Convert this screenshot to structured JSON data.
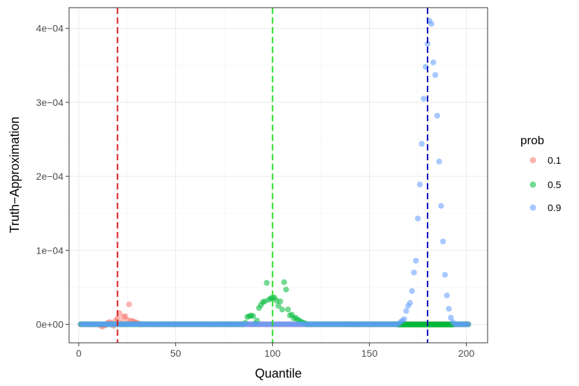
{
  "chart_data": {
    "type": "scatter",
    "xlabel": "Quantile",
    "ylabel": "Truth−Approximation",
    "xlim": [
      -5,
      211
    ],
    "ylim": [
      -2.5e-05,
      0.000428
    ],
    "x_ticks": [
      0,
      50,
      100,
      150,
      200
    ],
    "x_tick_labels": [
      "0",
      "50",
      "100",
      "150",
      "200"
    ],
    "y_ticks": [
      0,
      0.0001,
      0.0002,
      0.0003,
      0.0004
    ],
    "y_tick_labels": [
      "0e+00",
      "1e−04",
      "2e−04",
      "3e−04",
      "4e−04"
    ],
    "grid": true,
    "theme": "bw",
    "legend": {
      "title": "prob",
      "placement": "right",
      "entries": [
        "0.1",
        "0.5",
        "0.9"
      ]
    },
    "vlines": [
      {
        "x": 20,
        "color": "#d7191c",
        "style": "dashed"
      },
      {
        "x": 100,
        "color": "#22dd22",
        "style": "dashed"
      },
      {
        "x": 180,
        "color": "#0000bb",
        "style": "dashed"
      }
    ],
    "series": [
      {
        "name": "0.1",
        "color": "#F8766D",
        "points": [
          [
            11,
            -1e-06
          ],
          [
            12,
            -3e-06
          ],
          [
            13,
            -2e-06
          ],
          [
            14,
            -1e-06
          ],
          [
            15,
            2e-06
          ],
          [
            16,
            3e-06
          ],
          [
            17,
            1e-06
          ],
          [
            18,
            -2e-06
          ],
          [
            19,
            5e-06
          ],
          [
            20,
            8e-06
          ],
          [
            21,
            1.5e-05
          ],
          [
            22,
            3e-06
          ],
          [
            23,
            1e-05
          ],
          [
            24,
            1.1e-05
          ],
          [
            25,
            6e-06
          ],
          [
            26,
            2.7e-05
          ],
          [
            27,
            5e-06
          ],
          [
            28,
            4e-06
          ],
          [
            29,
            3e-06
          ],
          [
            30,
            2e-06
          ],
          [
            31,
            1e-06
          ]
        ],
        "baseline_range": [
          1,
          201
        ]
      },
      {
        "name": "0.5",
        "color": "#00BA38",
        "points": [
          [
            86,
            2e-06
          ],
          [
            87,
            1e-05
          ],
          [
            88,
            1.1e-05
          ],
          [
            89,
            1.2e-05
          ],
          [
            90,
            1.1e-05
          ],
          [
            91,
            1e-06
          ],
          [
            92,
            5e-06
          ],
          [
            93,
            2.2e-05
          ],
          [
            94,
            2.6e-05
          ],
          [
            95,
            3e-05
          ],
          [
            96,
            3.1e-05
          ],
          [
            97,
            5.6e-05
          ],
          [
            98,
            3.3e-05
          ],
          [
            99,
            3.5e-05
          ],
          [
            100,
            3.6e-05
          ],
          [
            101,
            3.6e-05
          ],
          [
            102,
            3.2e-05
          ],
          [
            103,
            2.5e-05
          ],
          [
            104,
            3.1e-05
          ],
          [
            105,
            2e-05
          ],
          [
            106,
            5.7e-05
          ],
          [
            107,
            4.7e-05
          ],
          [
            108,
            2e-05
          ],
          [
            109,
            1.2e-05
          ],
          [
            110,
            1.3e-05
          ],
          [
            111,
            8e-06
          ],
          [
            112,
            9e-06
          ],
          [
            113,
            6e-06
          ],
          [
            114,
            5e-06
          ],
          [
            115,
            3e-06
          ],
          [
            116,
            2e-06
          ],
          [
            117,
            1e-06
          ]
        ],
        "baseline_range": [
          1,
          201
        ],
        "band": {
          "x_range": [
            165,
            193
          ],
          "y": -5e-07
        }
      },
      {
        "name": "0.9",
        "color": "#619CFF",
        "points": [
          [
            166,
            3e-06
          ],
          [
            167,
            5e-06
          ],
          [
            168,
            7e-06
          ],
          [
            169,
            1.8e-05
          ],
          [
            170,
            2.5e-05
          ],
          [
            171,
            2.9e-05
          ],
          [
            172,
            4.5e-05
          ],
          [
            173,
            7e-05
          ],
          [
            174,
            8.6e-05
          ],
          [
            175,
            0.000143
          ],
          [
            176,
            0.000189
          ],
          [
            177,
            0.000244
          ],
          [
            178,
            0.000305
          ],
          [
            179,
            0.000348
          ],
          [
            180,
            0.000379
          ],
          [
            181,
            0.00041
          ],
          [
            182,
            0.000406
          ],
          [
            183,
            0.000354
          ],
          [
            184,
            0.000337
          ],
          [
            185,
            0.000282
          ],
          [
            186,
            0.00022
          ],
          [
            187,
            0.00016
          ],
          [
            188,
            0.000112
          ],
          [
            189,
            6.7e-05
          ],
          [
            190,
            3.9e-05
          ],
          [
            191,
            2.1e-05
          ],
          [
            192,
            9e-06
          ],
          [
            193,
            3e-06
          ]
        ],
        "baseline_range": [
          1,
          201
        ]
      }
    ]
  }
}
